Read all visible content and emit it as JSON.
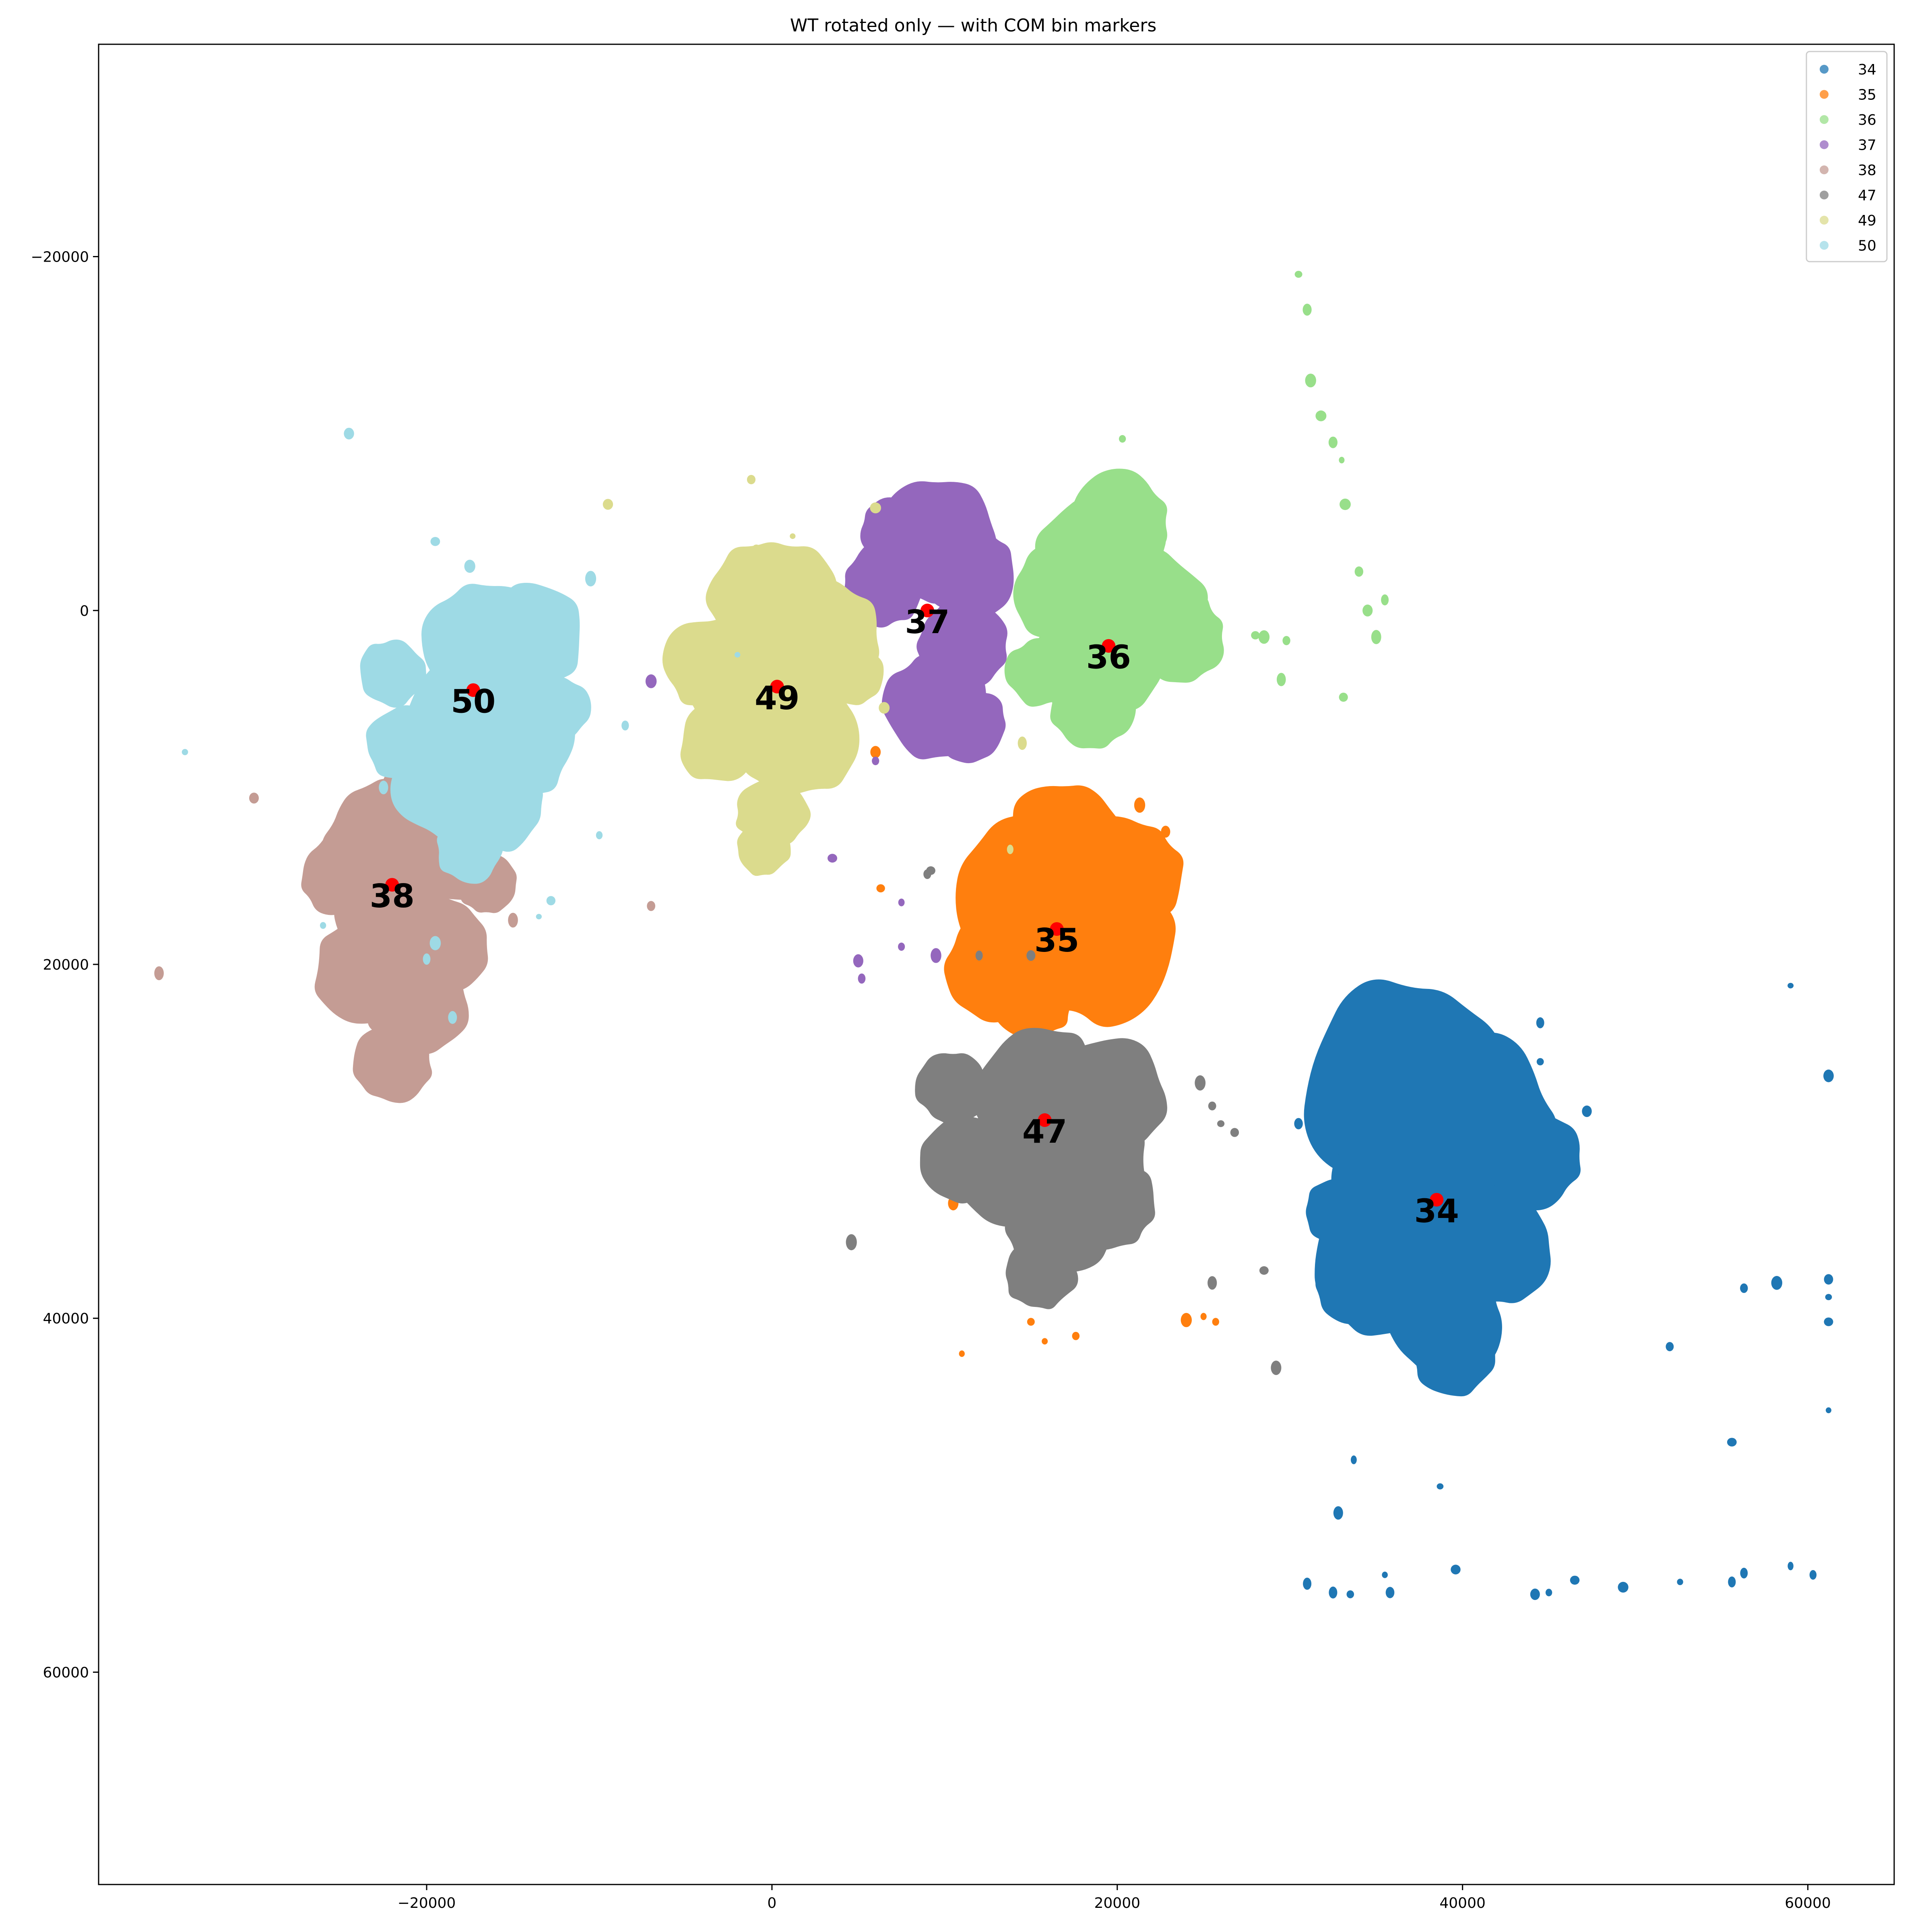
{
  "chart_data": {
    "type": "scatter",
    "title": "WT rotated only — with COM bin markers",
    "xlabel": "",
    "ylabel": "",
    "xlim": [
      -39000,
      65000
    ],
    "ylim": [
      -32000,
      72000
    ],
    "y_inverted": true,
    "grid": false,
    "legend_position": "top-right",
    "x_ticks": [
      -20000,
      0,
      20000,
      40000,
      60000
    ],
    "x_tick_labels": [
      "−20000",
      "0",
      "20000",
      "40000",
      "60000"
    ],
    "y_ticks": [
      -20000,
      0,
      20000,
      40000,
      60000
    ],
    "y_tick_labels": [
      "−20000",
      "0",
      "20000",
      "40000",
      "60000"
    ],
    "com_marker_color": "#ff0000",
    "series": [
      {
        "name": "34",
        "color": "#1f77b4",
        "blobs": [
          [
            37000,
            27000,
            6500
          ],
          [
            40000,
            29000,
            5500
          ],
          [
            38000,
            33000,
            6000
          ],
          [
            35500,
            37000,
            4500
          ],
          [
            39000,
            40000,
            3500
          ],
          [
            42000,
            36000,
            3500
          ],
          [
            44000,
            31000,
            3000
          ],
          [
            36000,
            29500,
            3500
          ],
          [
            33000,
            34000,
            2200
          ],
          [
            34000,
            38000,
            2600
          ],
          [
            39500,
            42000,
            2500
          ]
        ],
        "specks": [
          [
            33700,
            48000
          ],
          [
            32800,
            51000
          ],
          [
            38700,
            49500
          ],
          [
            31000,
            55000
          ],
          [
            32500,
            55500
          ],
          [
            33500,
            55600
          ],
          [
            35500,
            54500
          ],
          [
            35800,
            55500
          ],
          [
            39600,
            54200
          ],
          [
            44200,
            55600
          ],
          [
            45000,
            55500
          ],
          [
            46500,
            54800
          ],
          [
            49300,
            55200
          ],
          [
            52600,
            54900
          ],
          [
            55600,
            54900
          ],
          [
            56300,
            54400
          ],
          [
            59000,
            54000
          ],
          [
            60300,
            54500
          ],
          [
            56300,
            38300
          ],
          [
            58200,
            38000
          ],
          [
            61200,
            37800
          ],
          [
            61200,
            38800
          ],
          [
            61200,
            40200
          ],
          [
            61200,
            45200
          ],
          [
            55600,
            47000
          ],
          [
            52000,
            41600
          ],
          [
            47200,
            28300
          ],
          [
            46000,
            30200
          ],
          [
            44500,
            23300
          ],
          [
            44500,
            25500
          ],
          [
            30500,
            29000
          ],
          [
            59000,
            21200
          ],
          [
            61200,
            26300
          ]
        ],
        "com": [
          38500,
          33300
        ],
        "label": "34"
      },
      {
        "name": "35",
        "color": "#ff7f0e",
        "blobs": [
          [
            16000,
            16000,
            5500
          ],
          [
            19000,
            19000,
            4500
          ],
          [
            13500,
            20000,
            3500
          ],
          [
            20500,
            15000,
            3500
          ],
          [
            17000,
            13000,
            3500
          ],
          [
            13500,
            15000,
            2500
          ],
          [
            15000,
            22000,
            2500
          ]
        ],
        "specks": [
          [
            21300,
            11000
          ],
          [
            22800,
            12500
          ],
          [
            14000,
            15200
          ],
          [
            6300,
            15700
          ],
          [
            6000,
            8000
          ],
          [
            11000,
            32000
          ],
          [
            10500,
            33500
          ],
          [
            10000,
            31500
          ],
          [
            15000,
            40200
          ],
          [
            17600,
            41000
          ],
          [
            15800,
            41300
          ],
          [
            11000,
            42000
          ],
          [
            24000,
            40100
          ],
          [
            25000,
            39900
          ],
          [
            25700,
            40200
          ]
        ],
        "com": [
          16500,
          18000
        ],
        "label": "35"
      },
      {
        "name": "36",
        "color": "#98df8a",
        "blobs": [
          [
            19000,
            -3000,
            4000
          ],
          [
            21500,
            0,
            3800
          ],
          [
            19000,
            2500,
            4000
          ],
          [
            16500,
            -1000,
            2800
          ],
          [
            20000,
            -5000,
            3000
          ],
          [
            23500,
            1500,
            2800
          ],
          [
            15500,
            3500,
            2000
          ],
          [
            18500,
            5500,
            2500
          ]
        ],
        "specks": [
          [
            28500,
            1500
          ],
          [
            29500,
            3900
          ],
          [
            30500,
            -19000
          ],
          [
            31000,
            -17000
          ],
          [
            31200,
            -13000
          ],
          [
            31800,
            -11000
          ],
          [
            32500,
            -9500
          ],
          [
            33000,
            -8500
          ],
          [
            33200,
            -6000
          ],
          [
            34000,
            -2200
          ],
          [
            34500,
            0
          ],
          [
            35000,
            1500
          ],
          [
            35500,
            -600
          ],
          [
            29800,
            1700
          ],
          [
            33100,
            4900
          ],
          [
            20300,
            -9700
          ],
          [
            28000,
            1400
          ]
        ],
        "com": [
          19500,
          2000
        ],
        "label": "36"
      },
      {
        "name": "37",
        "color": "#9467bd",
        "blobs": [
          [
            9500,
            -4000,
            3800
          ],
          [
            11500,
            -2000,
            2800
          ],
          [
            11000,
            2000,
            2800
          ],
          [
            9500,
            5500,
            3200
          ],
          [
            6500,
            -1500,
            2500
          ],
          [
            11500,
            6500,
            2200
          ],
          [
            7000,
            -4500,
            2000
          ]
        ],
        "specks": [
          [
            6000,
            8500
          ],
          [
            -7000,
            4000
          ],
          [
            7500,
            16500
          ],
          [
            7500,
            19000
          ],
          [
            5000,
            19800
          ],
          [
            5200,
            20800
          ],
          [
            3500,
            14000
          ],
          [
            9500,
            19500
          ]
        ],
        "com": [
          9000,
          0
        ],
        "label": "37"
      },
      {
        "name": "38",
        "color": "#c49c94",
        "blobs": [
          [
            -22500,
            13000,
            3500
          ],
          [
            -20000,
            11000,
            3200
          ],
          [
            -22000,
            17000,
            3500
          ],
          [
            -23500,
            20500,
            3200
          ],
          [
            -20500,
            22500,
            3000
          ],
          [
            -22000,
            25500,
            2400
          ],
          [
            -19500,
            19000,
            3200
          ],
          [
            -18500,
            14000,
            2500
          ],
          [
            -25000,
            15000,
            2400
          ],
          [
            -16500,
            15500,
            1800
          ]
        ],
        "specks": [
          [
            -30000,
            10600
          ],
          [
            -35500,
            20500
          ],
          [
            -7000,
            16700
          ],
          [
            -15000,
            17500
          ]
        ],
        "com": [
          -22000,
          15500
        ],
        "label": "38"
      },
      {
        "name": "47",
        "color": "#7f7f7f",
        "blobs": [
          [
            15500,
            27000,
            3800
          ],
          [
            17500,
            31000,
            4200
          ],
          [
            13500,
            31500,
            3500
          ],
          [
            16500,
            35000,
            3000
          ],
          [
            15500,
            37500,
            2200
          ],
          [
            19500,
            27500,
            3500
          ],
          [
            10500,
            27000,
            2200
          ],
          [
            11000,
            31000,
            2500
          ],
          [
            19500,
            33500,
            2800
          ]
        ],
        "specks": [
          [
            9000,
            14900
          ],
          [
            9200,
            14700
          ],
          [
            4600,
            35700
          ],
          [
            24800,
            26700
          ],
          [
            25500,
            28000
          ],
          [
            26000,
            29000
          ],
          [
            26800,
            29500
          ],
          [
            25500,
            38000
          ],
          [
            28500,
            37300
          ],
          [
            29200,
            42800
          ],
          [
            15000,
            19500
          ],
          [
            12000,
            19500
          ]
        ],
        "com": [
          15800,
          28800
        ],
        "label": "47"
      },
      {
        "name": "49",
        "color": "#dbdb8d",
        "blobs": [
          [
            0,
            -500,
            3800
          ],
          [
            3000,
            1500,
            3500
          ],
          [
            -1000,
            4500,
            4000
          ],
          [
            1500,
            7000,
            3800
          ],
          [
            -3500,
            3000,
            2800
          ],
          [
            -3000,
            7500,
            2500
          ],
          [
            0,
            11500,
            2200
          ],
          [
            -500,
            13500,
            1600
          ],
          [
            4500,
            3500,
            2000
          ]
        ],
        "specks": [
          [
            -1200,
            -7400
          ],
          [
            -9500,
            -6000
          ],
          [
            1200,
            -4200
          ],
          [
            -500,
            -3400
          ],
          [
            -900,
            -3500
          ],
          [
            6500,
            5500
          ],
          [
            14500,
            7500
          ],
          [
            6000,
            -5800
          ],
          [
            13800,
            13500
          ]
        ],
        "com": [
          300,
          4300
        ],
        "label": "49"
      },
      {
        "name": "50",
        "color": "#9edae5",
        "blobs": [
          [
            -16500,
            2000,
            4000
          ],
          [
            -14000,
            1500,
            3200
          ],
          [
            -17000,
            6000,
            4000
          ],
          [
            -14500,
            7500,
            3200
          ],
          [
            -19000,
            10000,
            3000
          ],
          [
            -16000,
            11000,
            2800
          ],
          [
            -17500,
            13500,
            2000
          ],
          [
            -22000,
            3500,
            2000
          ],
          [
            -21500,
            7500,
            2200
          ],
          [
            -12500,
            5500,
            2000
          ]
        ],
        "specks": [
          [
            -24500,
            -10000
          ],
          [
            -19500,
            -3900
          ],
          [
            -17500,
            -2500
          ],
          [
            -10500,
            -1800
          ],
          [
            -34000,
            8000
          ],
          [
            -26000,
            17800
          ],
          [
            -19500,
            18800
          ],
          [
            -12800,
            16400
          ],
          [
            -13500,
            17300
          ],
          [
            -10000,
            12700
          ],
          [
            -8500,
            6500
          ],
          [
            -22500,
            10000
          ],
          [
            -20000,
            19700
          ],
          [
            -18500,
            23000
          ],
          [
            -2000,
            2500
          ]
        ],
        "com": [
          -17300,
          4500
        ],
        "label": "50"
      }
    ]
  }
}
